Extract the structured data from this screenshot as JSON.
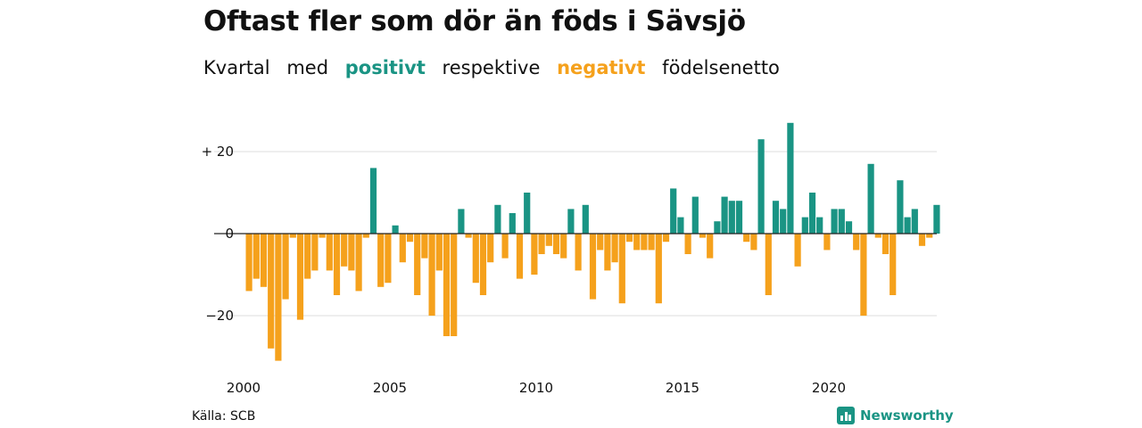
{
  "title": "Oftast fler som dör än föds i Sävsjö",
  "subtitle": {
    "w1": "Kvartal",
    "w2": "med",
    "positive": "positivt",
    "w3": "respektive",
    "negative": "negativt",
    "w4": "födelsenetto"
  },
  "source": "Källa: SCB",
  "brand": "Newsworthy",
  "colors": {
    "positive": "#1a9484",
    "negative": "#f5a11c",
    "grid": "#dddddd",
    "brand": "#1a9484"
  },
  "chart_data": {
    "type": "bar",
    "x_start": "2000 Q1",
    "x_ticks": [
      "2000",
      "2005",
      "2010",
      "2015",
      "2020"
    ],
    "y_ticks": [
      "+ 20",
      "0",
      "−20"
    ],
    "y_tick_values": [
      20,
      0,
      -20
    ],
    "ylim": [
      -33,
      29
    ],
    "values": [
      -14,
      -11,
      -13,
      -28,
      -31,
      -16,
      -1,
      -21,
      -11,
      -9,
      -1,
      -9,
      -15,
      -8,
      -9,
      -14,
      -1,
      16,
      -13,
      -12,
      2,
      -7,
      -2,
      -15,
      -6,
      -20,
      -9,
      -25,
      -25,
      6,
      -1,
      -12,
      -15,
      -7,
      7,
      -6,
      5,
      -11,
      10,
      -10,
      -5,
      -3,
      -5,
      -6,
      6,
      -9,
      7,
      -16,
      -4,
      -9,
      -7,
      -17,
      -2,
      -4,
      -4,
      -4,
      -17,
      -2,
      11,
      4,
      -5,
      9,
      -1,
      -6,
      3,
      9,
      8,
      8,
      -2,
      -4,
      23,
      -15,
      8,
      6,
      27,
      -8,
      4,
      10,
      4,
      -4,
      6,
      6,
      3,
      -4,
      -20,
      17,
      -1,
      -5,
      -15,
      13,
      4,
      6,
      -3,
      -1,
      7
    ]
  }
}
